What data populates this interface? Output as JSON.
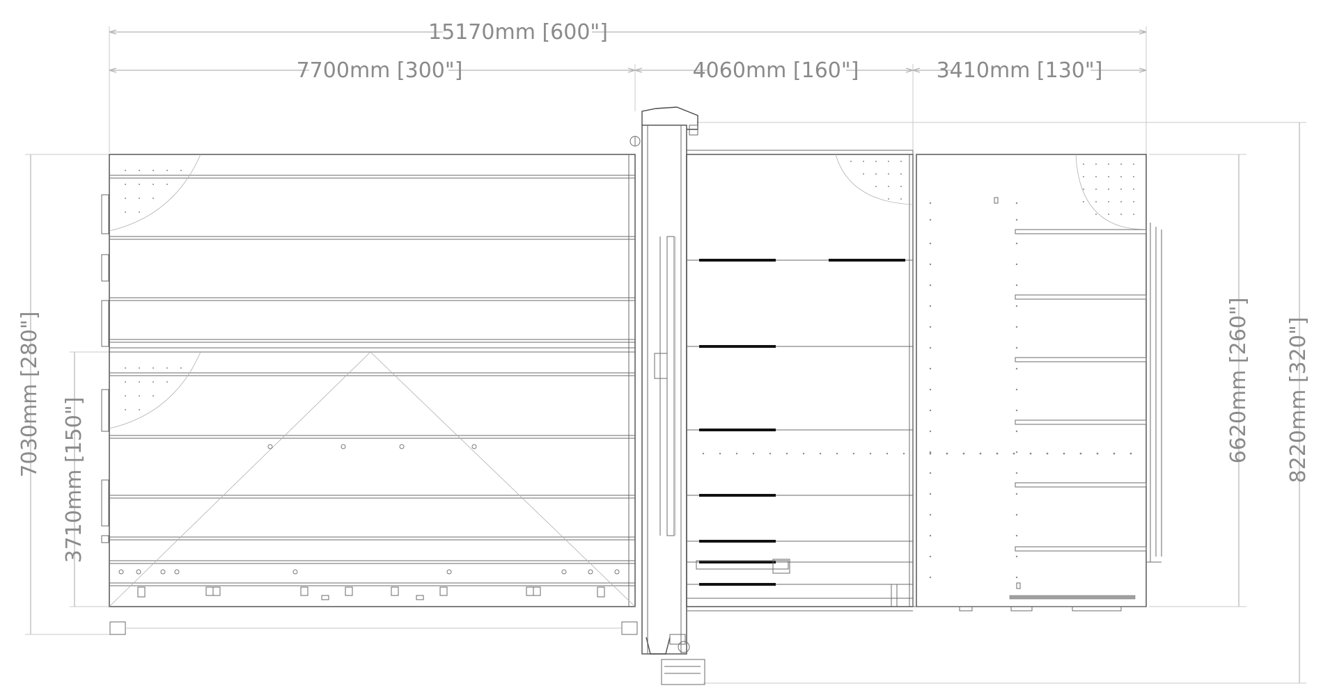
{
  "dimensions": {
    "overall_width": "15170mm [600\"]",
    "left_width": "7700mm [300\"]",
    "middle_width": "4060mm [160\"]",
    "right_width": "3410mm [130\"]",
    "left_height": "7030mm [280\"]",
    "left_lower_height": "3710mm [150\"]",
    "right_inner_height": "6620mm [260\"]",
    "right_outer_height": "8220mm [320\"]"
  },
  "colors": {
    "dimension_text": "#8a8a8a",
    "line": "#4a4a4a",
    "background": "#ffffff"
  }
}
